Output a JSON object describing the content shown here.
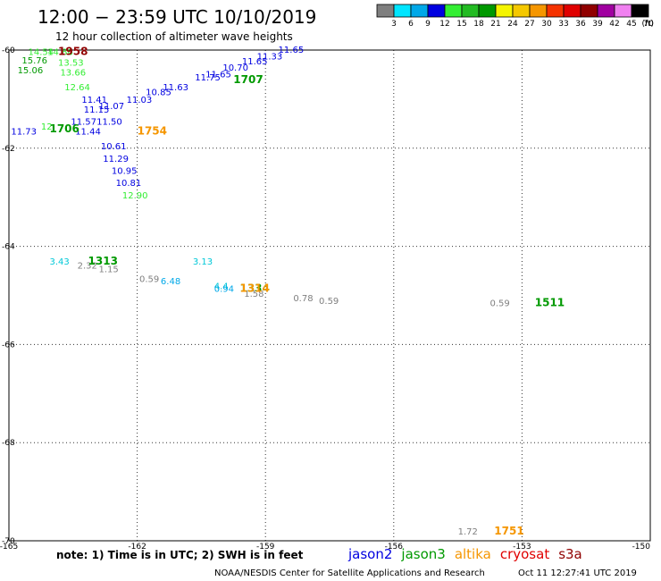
{
  "header": {
    "title": "12:00 − 23:59 UTC 10/10/2019",
    "subtitle": "12 hour collection of altimeter wave heights"
  },
  "colorbar": {
    "unit": "(ft)",
    "levels": [
      "3",
      "6",
      "9",
      "12",
      "15",
      "18",
      "21",
      "24",
      "27",
      "30",
      "33",
      "36",
      "39",
      "42",
      "45",
      "70"
    ],
    "colors": [
      "#7f7f7f",
      "#00e5ff",
      "#00a8e8",
      "#0000e0",
      "#33ee33",
      "#22bb22",
      "#009900",
      "#f5f500",
      "#f5c800",
      "#f59600",
      "#f53200",
      "#e00000",
      "#900000",
      "#a000a0",
      "#f080f0",
      "#000000"
    ]
  },
  "map": {
    "lon_range": [
      -165,
      -150
    ],
    "lat_range": [
      -70,
      -60
    ],
    "lon_ticks": [
      "-165",
      "-162",
      "-159",
      "-156",
      "-153",
      "-150"
    ],
    "lat_ticks": [
      "-60",
      "-62",
      "-64",
      "-66",
      "-68",
      "-70"
    ],
    "grid": "dotted"
  },
  "observations": [
    {
      "lon": -164.55,
      "lat": -60.03,
      "text": "14.54",
      "color": "#33ee33"
    },
    {
      "lon": -164.1,
      "lat": -60.03,
      "text": "14.86",
      "color": "#33ee33"
    },
    {
      "lon": -164.7,
      "lat": -60.2,
      "text": "15.76",
      "color": "#009900"
    },
    {
      "lon": -163.85,
      "lat": -60.25,
      "text": "13.53",
      "color": "#33ee33"
    },
    {
      "lon": -164.8,
      "lat": -60.4,
      "text": "15.06",
      "color": "#009900"
    },
    {
      "lon": -163.8,
      "lat": -60.45,
      "text": "13.66",
      "color": "#33ee33"
    },
    {
      "lon": -163.7,
      "lat": -60.75,
      "text": "12.64",
      "color": "#33ee33"
    },
    {
      "lon": -163.3,
      "lat": -61.0,
      "text": "11.41",
      "color": "#0000e0"
    },
    {
      "lon": -163.25,
      "lat": -61.2,
      "text": "11.15",
      "color": "#0000e0"
    },
    {
      "lon": -162.9,
      "lat": -61.13,
      "text": "11.07",
      "color": "#0000e0"
    },
    {
      "lon": -162.25,
      "lat": -61.0,
      "text": "11.03",
      "color": "#0000e0"
    },
    {
      "lon": -161.8,
      "lat": -60.85,
      "text": "10.85",
      "color": "#0000e0"
    },
    {
      "lon": -161.4,
      "lat": -60.75,
      "text": "11.63",
      "color": "#0000e0"
    },
    {
      "lon": -160.65,
      "lat": -60.55,
      "text": "11.75",
      "color": "#0000e0"
    },
    {
      "lon": -160.4,
      "lat": -60.48,
      "text": "11.65",
      "color": "#0000e0"
    },
    {
      "lon": -160.0,
      "lat": -60.35,
      "text": "10.70",
      "color": "#0000e0"
    },
    {
      "lon": -159.55,
      "lat": -60.22,
      "text": "11.65",
      "color": "#0000e0"
    },
    {
      "lon": -159.2,
      "lat": -60.12,
      "text": "11.33",
      "color": "#0000e0"
    },
    {
      "lon": -158.7,
      "lat": -59.98,
      "text": "11.65",
      "color": "#0000e0"
    },
    {
      "lon": -163.55,
      "lat": -61.45,
      "text": "11.57",
      "color": "#0000e0"
    },
    {
      "lon": -162.95,
      "lat": -61.45,
      "text": "11.50",
      "color": "#0000e0"
    },
    {
      "lon": -164.95,
      "lat": -61.65,
      "text": "11.73",
      "color": "#0000e0"
    },
    {
      "lon": -164.25,
      "lat": -61.55,
      "text": "12",
      "color": "#33ee33"
    },
    {
      "lon": -163.45,
      "lat": -61.65,
      "text": "11.44",
      "color": "#0000e0"
    },
    {
      "lon": -162.85,
      "lat": -61.95,
      "text": "10.61",
      "color": "#0000e0"
    },
    {
      "lon": -162.8,
      "lat": -62.2,
      "text": "11.29",
      "color": "#0000e0"
    },
    {
      "lon": -162.6,
      "lat": -62.45,
      "text": "10.95",
      "color": "#0000e0"
    },
    {
      "lon": -162.5,
      "lat": -62.7,
      "text": "10.81",
      "color": "#0000e0"
    },
    {
      "lon": -162.35,
      "lat": -62.95,
      "text": "12.90",
      "color": "#33ee33"
    },
    {
      "lon": -164.05,
      "lat": -64.3,
      "text": "3.43",
      "color": "#00c8d8"
    },
    {
      "lon": -163.4,
      "lat": -64.38,
      "text": "2.32",
      "color": "#7f7f7f"
    },
    {
      "lon": -162.9,
      "lat": -64.45,
      "text": "1.15",
      "color": "#7f7f7f"
    },
    {
      "lon": -161.95,
      "lat": -64.65,
      "text": "0.59",
      "color": "#7f7f7f"
    },
    {
      "lon": -161.45,
      "lat": -64.7,
      "text": "6.48",
      "color": "#00a8e8"
    },
    {
      "lon": -160.7,
      "lat": -64.3,
      "text": "3.13",
      "color": "#00c8d8"
    },
    {
      "lon": -160.2,
      "lat": -64.8,
      "text": "4.4",
      "color": "#00c8d8"
    },
    {
      "lon": -160.2,
      "lat": -64.85,
      "text": "0.94",
      "color": "#00a8e8"
    },
    {
      "lon": -159.5,
      "lat": -64.95,
      "text": "1.58",
      "color": "#7f7f7f"
    },
    {
      "lon": -158.35,
      "lat": -65.05,
      "text": "0.78",
      "color": "#7f7f7f"
    },
    {
      "lon": -157.75,
      "lat": -65.1,
      "text": "0.59",
      "color": "#7f7f7f"
    },
    {
      "lon": -153.75,
      "lat": -65.15,
      "text": "0.59",
      "color": "#7f7f7f"
    },
    {
      "lon": -154.5,
      "lat": -69.8,
      "text": "1.72",
      "color": "#7f7f7f"
    }
  ],
  "pass_times": [
    {
      "lon": -163.85,
      "lat": -60.03,
      "text": "1958",
      "color": "#900000"
    },
    {
      "lon": -159.75,
      "lat": -60.6,
      "text": "1707",
      "color": "#009900"
    },
    {
      "lon": -164.05,
      "lat": -61.6,
      "text": "1706",
      "color": "#009900"
    },
    {
      "lon": -162.0,
      "lat": -61.65,
      "text": "1754",
      "color": "#f59600"
    },
    {
      "lon": -163.15,
      "lat": -64.3,
      "text": "1313",
      "color": "#009900"
    },
    {
      "lon": -159.6,
      "lat": -64.85,
      "text": "1334",
      "color": "#009900"
    },
    {
      "lon": -159.6,
      "lat": -64.85,
      "text": "1314",
      "color": "#f59600"
    },
    {
      "lon": -152.7,
      "lat": -65.15,
      "text": "1511",
      "color": "#009900"
    },
    {
      "lon": -153.65,
      "lat": -69.8,
      "text": "1751",
      "color": "#f59600"
    }
  ],
  "footer": {
    "note": "note: 1) Time is in UTC; 2) SWH is in feet",
    "satellites": [
      {
        "name": "jason2",
        "color": "#0000e0"
      },
      {
        "name": "jason3",
        "color": "#009900"
      },
      {
        "name": "altika",
        "color": "#f59600"
      },
      {
        "name": "cryosat",
        "color": "#e00000"
      },
      {
        "name": "s3a",
        "color": "#900000"
      }
    ],
    "credit": "NOAA/NESDIS Center for Satellite Applications and Research",
    "timestamp": "Oct 11 12:27:41 UTC 2019"
  }
}
